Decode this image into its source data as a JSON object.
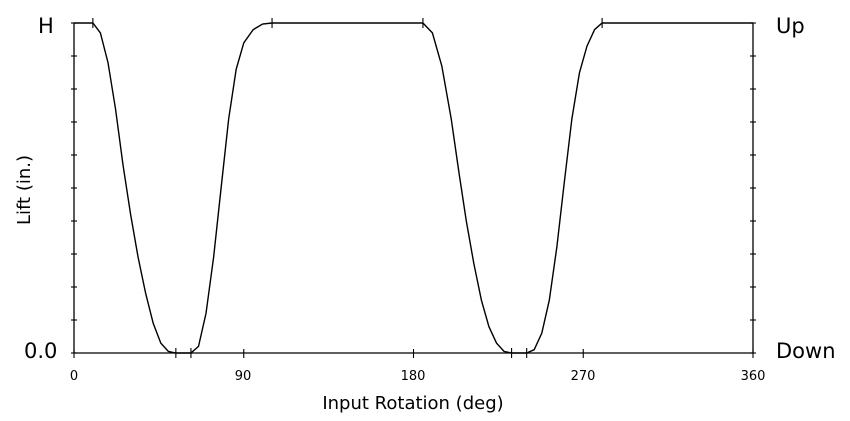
{
  "chart_data": {
    "type": "line",
    "title": "",
    "xlabel": "Input Rotation (deg)",
    "ylabel": "Lift (in.)",
    "xlim": [
      0,
      360
    ],
    "ylim": [
      0,
      1
    ],
    "x_ticks": [
      0,
      90,
      180,
      270,
      360
    ],
    "x_tick_labels": [
      "0",
      "90",
      "180",
      "270",
      "360"
    ],
    "y_tick_labels_left": [
      "0.0",
      "H"
    ],
    "y_tick_labels_right": [
      "Down",
      "Up"
    ],
    "grid": false,
    "series": [
      {
        "values": [
          [
            0,
            1
          ],
          [
            10,
            1
          ],
          [
            14,
            0.97
          ],
          [
            18,
            0.88
          ],
          [
            22,
            0.74
          ],
          [
            26,
            0.57
          ],
          [
            30,
            0.42
          ],
          [
            34,
            0.29
          ],
          [
            38,
            0.18
          ],
          [
            42,
            0.09
          ],
          [
            46,
            0.03
          ],
          [
            50,
            0.005
          ],
          [
            54,
            0
          ],
          [
            62,
            0
          ],
          [
            66,
            0.02
          ],
          [
            70,
            0.12
          ],
          [
            74,
            0.29
          ],
          [
            78,
            0.5
          ],
          [
            82,
            0.71
          ],
          [
            86,
            0.86
          ],
          [
            90,
            0.94
          ],
          [
            95,
            0.98
          ],
          [
            100,
            0.997
          ],
          [
            105,
            1
          ],
          [
            185,
            1
          ],
          [
            190,
            0.97
          ],
          [
            195,
            0.87
          ],
          [
            200,
            0.71
          ],
          [
            204,
            0.55
          ],
          [
            208,
            0.4
          ],
          [
            212,
            0.27
          ],
          [
            216,
            0.16
          ],
          [
            220,
            0.08
          ],
          [
            224,
            0.03
          ],
          [
            228,
            0.005
          ],
          [
            232,
            0
          ],
          [
            240,
            0
          ],
          [
            244,
            0.01
          ],
          [
            248,
            0.06
          ],
          [
            252,
            0.16
          ],
          [
            256,
            0.32
          ],
          [
            260,
            0.52
          ],
          [
            264,
            0.71
          ],
          [
            268,
            0.85
          ],
          [
            272,
            0.93
          ],
          [
            276,
            0.98
          ],
          [
            280,
            1
          ],
          [
            360,
            1
          ]
        ]
      }
    ],
    "curve_ticks": [
      10,
      54,
      62,
      105,
      185,
      232,
      240,
      280
    ]
  }
}
